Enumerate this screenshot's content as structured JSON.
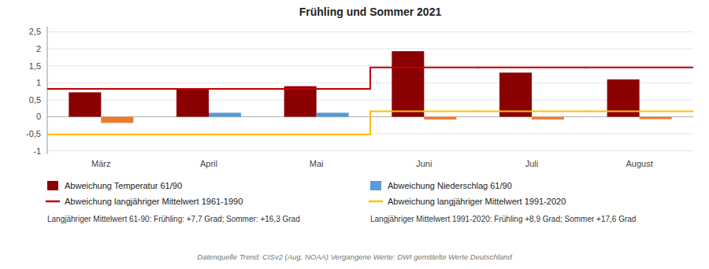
{
  "chart_data": {
    "type": "bar",
    "title": "Frühling und Sommer 2021",
    "categories": [
      "März",
      "April",
      "Mai",
      "Juni",
      "Juli",
      "August"
    ],
    "series": [
      {
        "name": "Abweichung Temperatur 61/90",
        "type": "bar",
        "color": "#8B0000",
        "values": [
          0.72,
          0.8,
          0.9,
          1.93,
          1.3,
          1.1
        ]
      },
      {
        "name": "Abweichung Niederschlag 61/90",
        "type": "bar",
        "color": "#5B9BD5",
        "colors": [
          "#ED7D31",
          "#5B9BD5",
          "#5B9BD5",
          "#ED7D31",
          "#ED7D31",
          "#ED7D31"
        ],
        "values": [
          -0.18,
          0.12,
          0.12,
          -0.08,
          -0.08,
          -0.07
        ]
      },
      {
        "name": "Abweichung langjähriger Mittelwert 1961-1990",
        "type": "step",
        "color": "#C00000",
        "values": [
          0.82,
          0.82,
          0.82,
          1.45,
          1.45,
          1.45
        ]
      },
      {
        "name": "Abweichung langjähriger Mittelwert 1991-2020",
        "type": "step",
        "color": "#FFC000",
        "values": [
          -0.52,
          -0.52,
          -0.52,
          0.16,
          0.16,
          0.16
        ]
      }
    ],
    "ylim": [
      -1.1,
      2.65
    ],
    "yticks": [
      -1,
      {
        "value": -0.5,
        "label": "-0,5"
      },
      0,
      {
        "value": 0.5,
        "label": "0,5"
      },
      1,
      {
        "value": 1.5,
        "label": "1,5"
      },
      2,
      {
        "value": 2.5,
        "label": "2,5"
      }
    ],
    "grid": true,
    "legend": "bottom",
    "annotations": [
      "Langjähriger Mittelwert 61-90: Frühling: +7,7 Grad; Sommer: +16,3 Grad",
      "Langjähriger Mittelwert 1991-2020: Frühling +8,9 Grad; Sommer +17,6 Grad",
      "Datenquelle Trend: CISv2 (Aug. NOAA)   Vergangene Werte: DWI   gemittelte Werte Deutschland"
    ]
  }
}
